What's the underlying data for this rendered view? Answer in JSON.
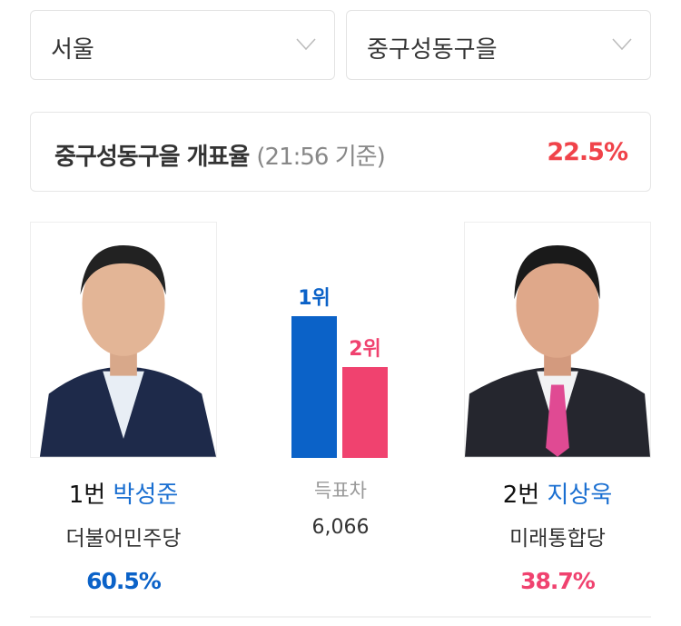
{
  "region_select": {
    "value": "서울",
    "icon": "chevron-down-icon"
  },
  "district_select": {
    "value": "중구성동구을",
    "icon": "chevron-down-icon"
  },
  "count_status": {
    "title": "중구성동구을 개표율",
    "time": "(21:56 기준)",
    "rate": "22.5%"
  },
  "candidates": [
    {
      "number": "1번",
      "name": "박성준",
      "party": "더불어민주당",
      "percent": "60.5%",
      "percent_value": 60.5,
      "rank": "1위",
      "color": "#0b62c8"
    },
    {
      "number": "2번",
      "name": "지상욱",
      "party": "미래통합당",
      "percent": "38.7%",
      "percent_value": 38.7,
      "rank": "2위",
      "color": "#f0426f"
    }
  ],
  "vote_gap": {
    "label": "득표차",
    "value": "6,066"
  },
  "colors": {
    "accent_red": "#f0434a",
    "name_blue": "#1a6fd1"
  }
}
